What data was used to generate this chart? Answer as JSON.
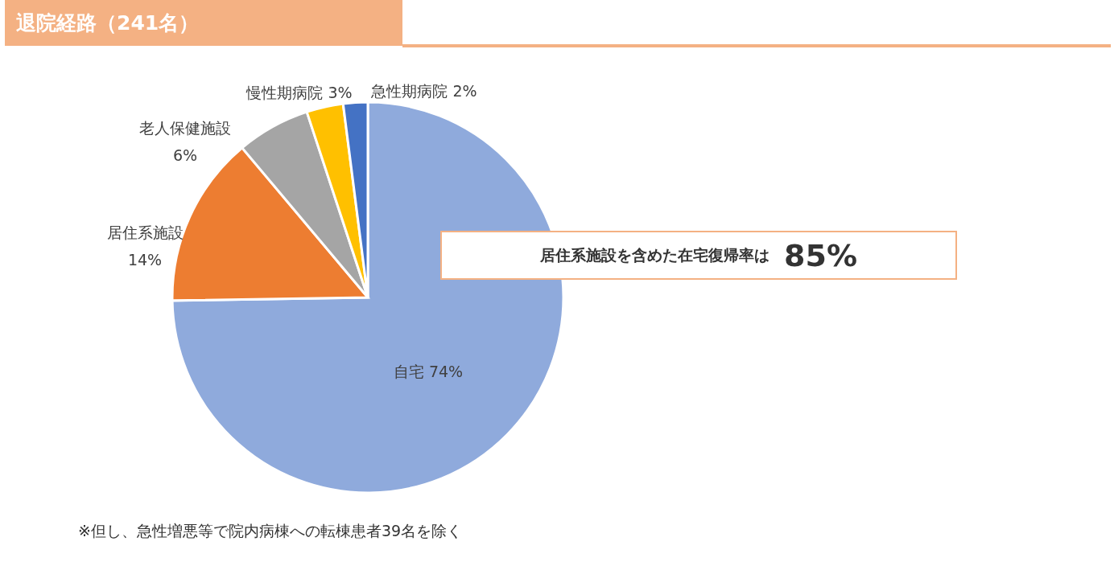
{
  "chart_data": {
    "type": "pie",
    "title": "退院経路（241名）",
    "categories": [
      "自宅",
      "居住系施設",
      "老人保健施設",
      "慢性期病院",
      "急性期病院"
    ],
    "values": [
      74,
      14,
      6,
      3,
      2
    ],
    "colors": [
      "#8faadc",
      "#ed7d31",
      "#a5a5a5",
      "#ffc000",
      "#4472c4"
    ],
    "value_labels": [
      "74%",
      "14%",
      "6%",
      "3%",
      "2%"
    ],
    "annotations": [
      "居住系施設を含めた在宅復帰率は",
      "85%",
      "※但し、急性増悪等で院内病棟への転棟患者39名を除く"
    ]
  }
}
